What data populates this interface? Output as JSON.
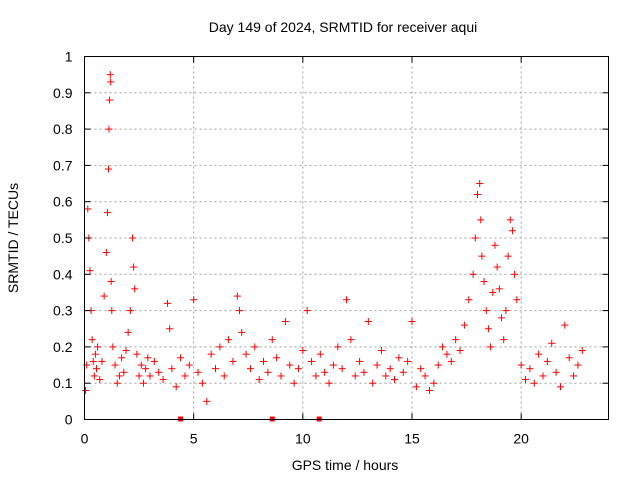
{
  "chart_data": {
    "type": "scatter",
    "title": "Day 149 of 2024, SRMTID for receiver aqui",
    "xlabel": "GPS time / hours",
    "ylabel": "SRMTID / TECUs",
    "xlim": [
      0,
      24
    ],
    "ylim": [
      0,
      1
    ],
    "xticks": [
      "0",
      "5",
      "10",
      "15",
      "20"
    ],
    "yticks": [
      "0",
      "0.1",
      "0.2",
      "0.3",
      "0.4",
      "0.5",
      "0.6",
      "0.7",
      "0.8",
      "0.9",
      "1"
    ],
    "grid": true,
    "marker": "plus",
    "color": "#ff0000",
    "series": [
      {
        "name": "SRMTID",
        "x": [
          0.05,
          0.1,
          0.15,
          0.2,
          0.25,
          0.3,
          0.35,
          0.4,
          0.45,
          0.5,
          0.55,
          0.6,
          0.7,
          0.8,
          0.9,
          1.0,
          1.05,
          1.1,
          1.12,
          1.15,
          1.18,
          1.2,
          1.22,
          1.25,
          1.3,
          1.4,
          1.5,
          1.6,
          1.7,
          1.8,
          1.9,
          2.0,
          2.1,
          2.2,
          2.25,
          2.3,
          2.4,
          2.5,
          2.6,
          2.7,
          2.8,
          2.9,
          3.0,
          3.2,
          3.4,
          3.6,
          3.8,
          3.9,
          4.0,
          4.2,
          4.4,
          4.6,
          4.8,
          5.0,
          5.2,
          5.4,
          5.6,
          5.8,
          6.0,
          6.2,
          6.4,
          6.6,
          6.8,
          7.0,
          7.1,
          7.2,
          7.4,
          7.6,
          7.8,
          8.0,
          8.2,
          8.4,
          8.6,
          8.8,
          9.0,
          9.2,
          9.4,
          9.6,
          9.8,
          10.0,
          10.2,
          10.4,
          10.6,
          10.8,
          11.0,
          11.2,
          11.4,
          11.6,
          11.8,
          12.0,
          12.2,
          12.4,
          12.6,
          12.8,
          13.0,
          13.2,
          13.4,
          13.6,
          13.8,
          14.0,
          14.2,
          14.4,
          14.6,
          14.8,
          15.0,
          15.2,
          15.4,
          15.6,
          15.8,
          16.0,
          16.2,
          16.4,
          16.6,
          16.8,
          17.0,
          17.2,
          17.4,
          17.6,
          17.8,
          17.9,
          18.0,
          18.1,
          18.15,
          18.2,
          18.3,
          18.4,
          18.5,
          18.6,
          18.7,
          18.8,
          18.9,
          19.0,
          19.1,
          19.2,
          19.3,
          19.4,
          19.5,
          19.6,
          19.7,
          19.8,
          20.0,
          20.2,
          20.4,
          20.6,
          20.8,
          21.0,
          21.2,
          21.4,
          21.6,
          21.8,
          22.0,
          22.2,
          22.4,
          22.6,
          22.8
        ],
        "y": [
          0.08,
          0.15,
          0.58,
          0.5,
          0.41,
          0.3,
          0.22,
          0.16,
          0.12,
          0.18,
          0.14,
          0.2,
          0.11,
          0.16,
          0.34,
          0.46,
          0.57,
          0.69,
          0.8,
          0.88,
          0.95,
          0.93,
          0.38,
          0.3,
          0.2,
          0.15,
          0.1,
          0.12,
          0.17,
          0.13,
          0.19,
          0.24,
          0.3,
          0.5,
          0.42,
          0.36,
          0.18,
          0.12,
          0.15,
          0.1,
          0.14,
          0.17,
          0.12,
          0.16,
          0.13,
          0.11,
          0.32,
          0.25,
          0.14,
          0.09,
          0.17,
          0.12,
          0.15,
          0.33,
          0.13,
          0.1,
          0.05,
          0.18,
          0.14,
          0.2,
          0.12,
          0.22,
          0.16,
          0.34,
          0.3,
          0.24,
          0.18,
          0.14,
          0.2,
          0.11,
          0.16,
          0.13,
          0.22,
          0.17,
          0.12,
          0.27,
          0.15,
          0.1,
          0.14,
          0.19,
          0.3,
          0.16,
          0.12,
          0.18,
          0.13,
          0.1,
          0.15,
          0.2,
          0.14,
          0.33,
          0.22,
          0.12,
          0.16,
          0.13,
          0.27,
          0.1,
          0.15,
          0.19,
          0.12,
          0.14,
          0.11,
          0.17,
          0.13,
          0.16,
          0.27,
          0.09,
          0.14,
          0.12,
          0.08,
          0.1,
          0.15,
          0.2,
          0.18,
          0.16,
          0.22,
          0.19,
          0.26,
          0.33,
          0.4,
          0.5,
          0.62,
          0.65,
          0.55,
          0.45,
          0.38,
          0.3,
          0.25,
          0.2,
          0.35,
          0.48,
          0.42,
          0.36,
          0.28,
          0.22,
          0.3,
          0.45,
          0.55,
          0.52,
          0.4,
          0.33,
          0.15,
          0.11,
          0.14,
          0.1,
          0.18,
          0.12,
          0.16,
          0.21,
          0.13,
          0.09,
          0.26,
          0.17,
          0.12,
          0.15,
          0.19
        ]
      }
    ],
    "ground_markers_x": [
      4.4,
      8.6,
      10.75
    ]
  }
}
